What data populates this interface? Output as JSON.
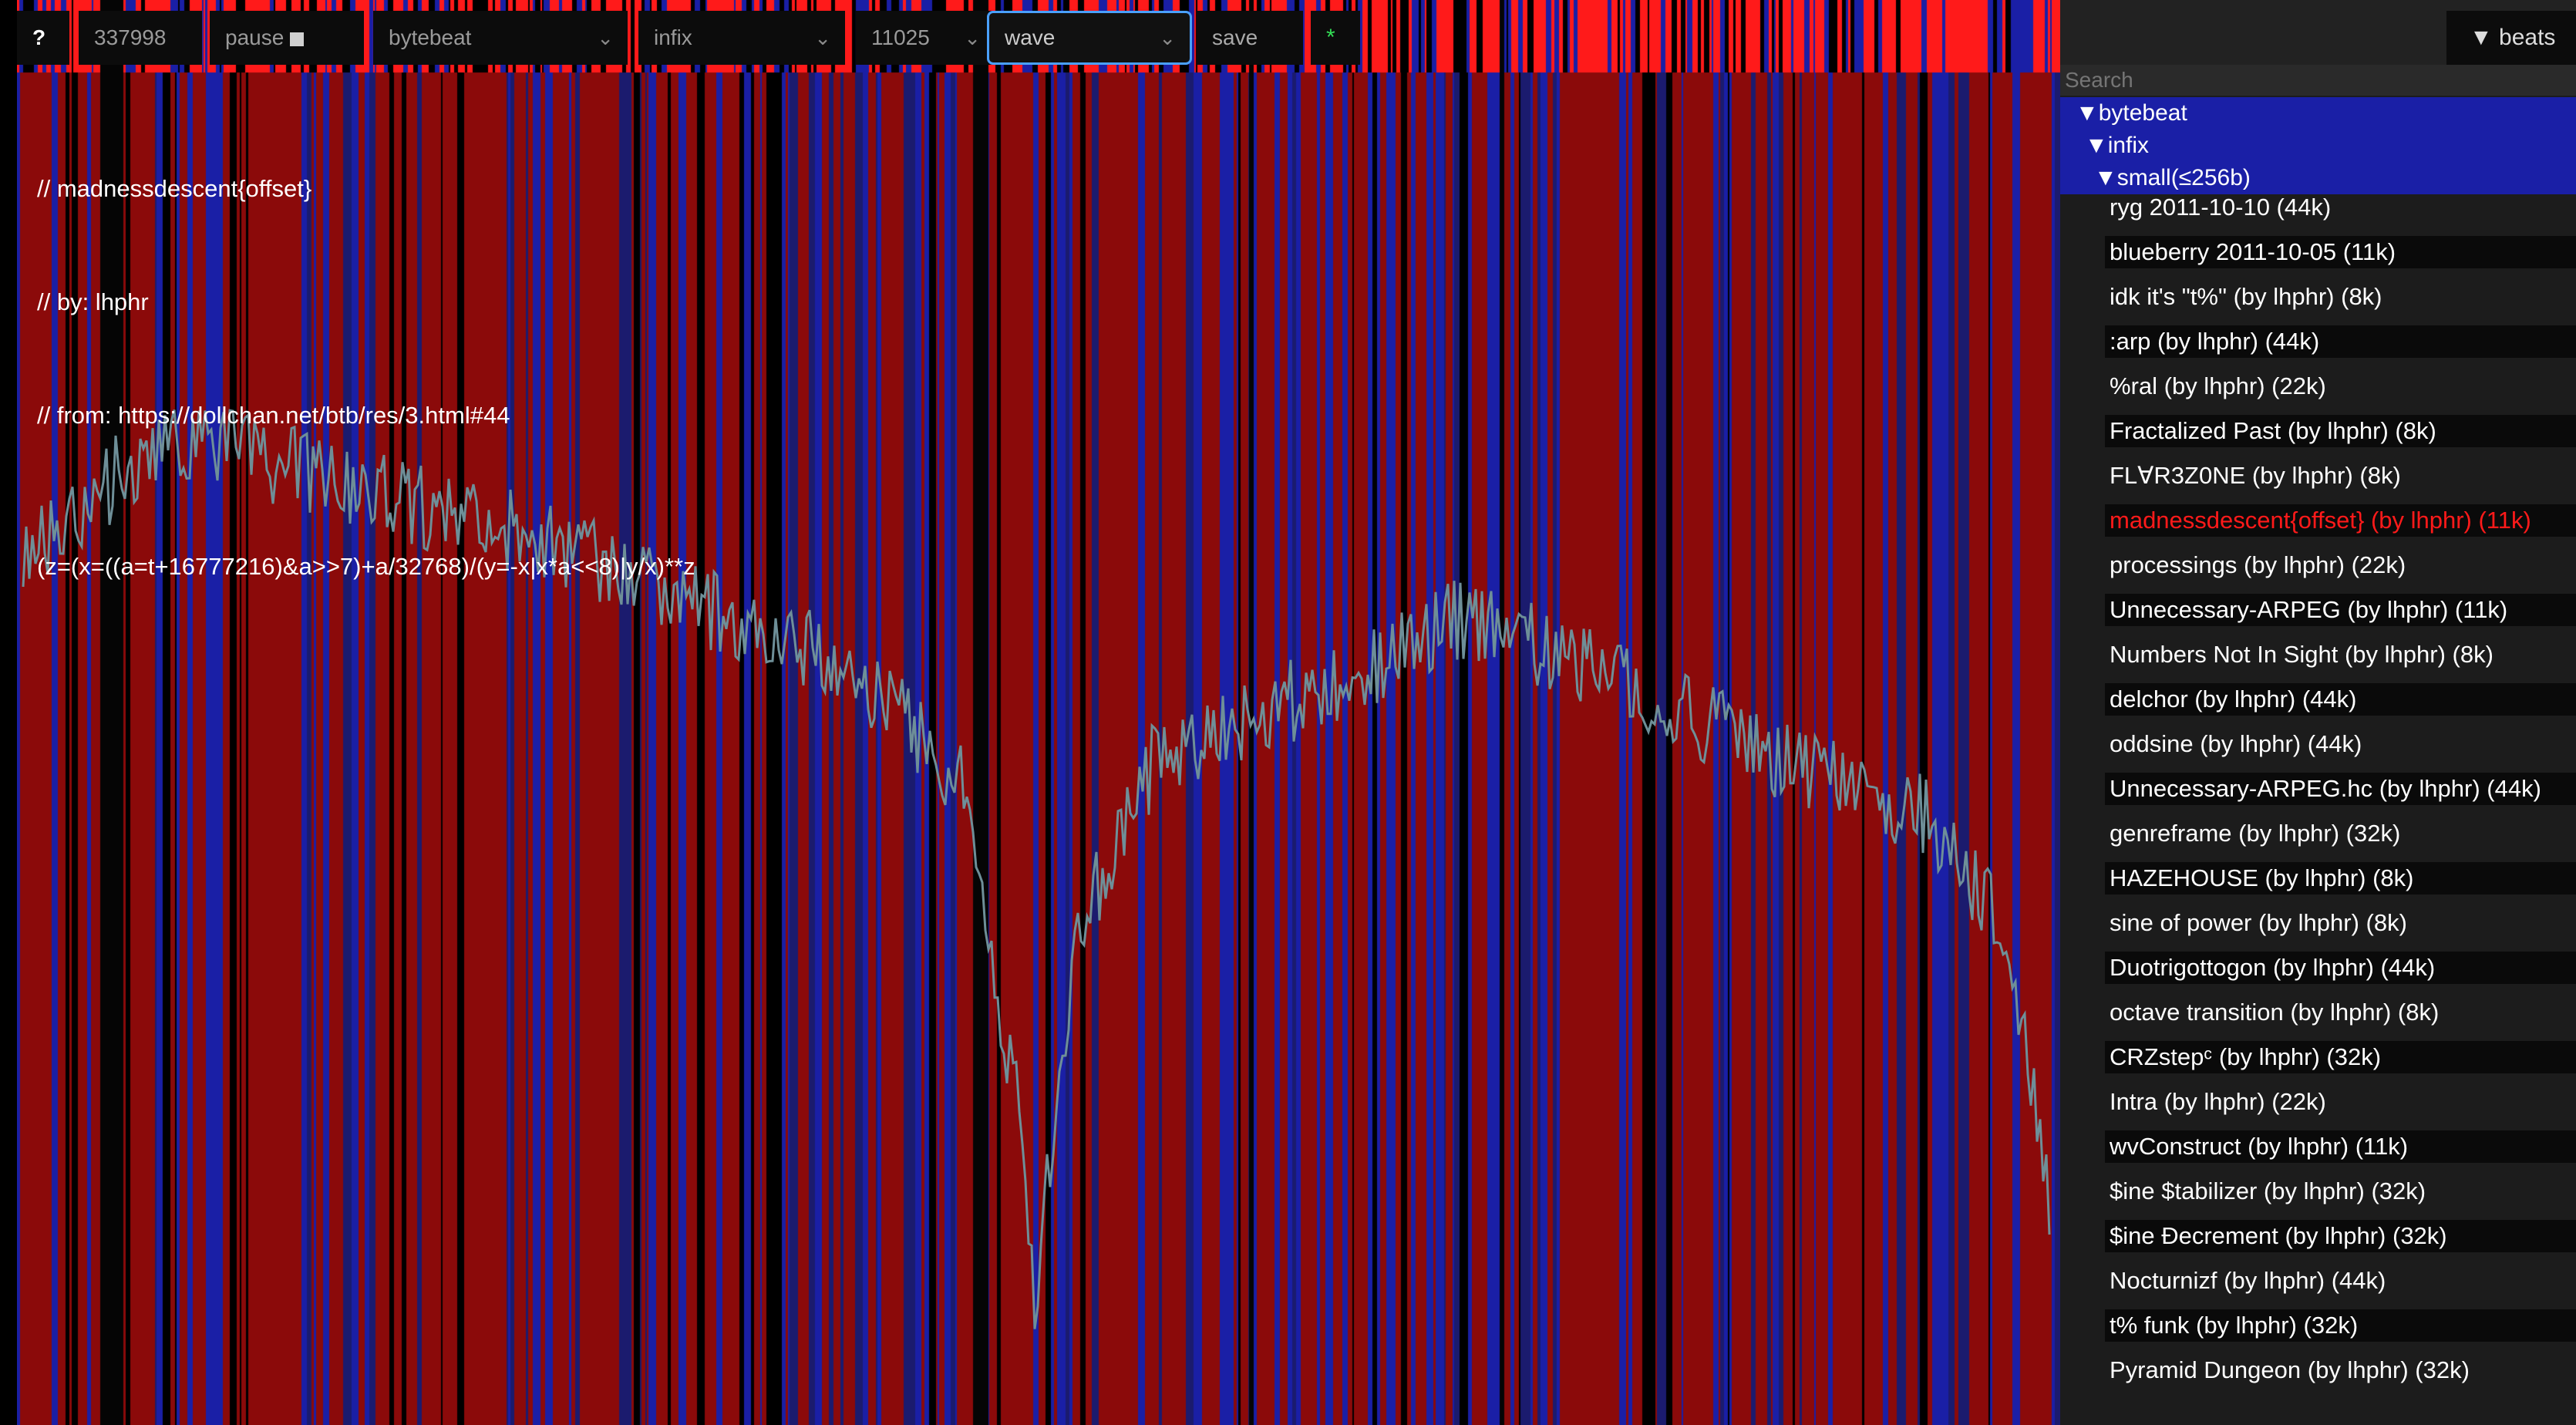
{
  "toolbar": {
    "help": "?",
    "counter": "337998",
    "pause": "pause",
    "mode": "bytebeat",
    "syntax": "infix",
    "rate": "11025",
    "view": "wave",
    "save": "save",
    "star": "*"
  },
  "code": {
    "line1": "// madnessdescent{offset}",
    "line2": "// by: lhphr",
    "line3": "// from: https://dollchan.net/btb/res/3.html#44",
    "expr": "(z=(x=((a=t+16777216)&a>>7)+a/32768)/(y=-x|x*a<<8)|y/x)**z"
  },
  "sidebar": {
    "beats_label": "▼ beats",
    "search_placeholder": "Search",
    "tree": [
      "▼bytebeat",
      "▼infix",
      "▼small(≤256b)"
    ],
    "items": [
      "ryg 2011-10-10 (44k)",
      "blueberry 2011-10-05 (11k)",
      "idk it's \"t%\" (by lhphr) (8k)",
      ":arp (by lhphr) (44k)",
      "%ral (by lhphr) (22k)",
      "Fractalized Past (by lhphr) (8k)",
      "FL∀R3Z0NE (by lhphr) (8k)",
      "madnessdescent{offset} (by lhphr) (11k)",
      "processings (by lhphr) (22k)",
      "Unnecessary-ARPEG (by lhphr) (11k)",
      "Numbers Not In Sight (by lhphr) (8k)",
      "delchor (by lhphr) (44k)",
      "oddsine (by lhphr) (44k)",
      "Unnecessary-ARPEG.hc (by lhphr) (44k)",
      "genreframe (by lhphr) (32k)",
      "HAZEHOUSE (by lhphr) (8k)",
      "sine of power (by lhphr) (8k)",
      "Duotrigottogon (by lhphr) (44k)",
      "octave transition (by lhphr) (8k)",
      "CRZstepᶜ (by lhphr) (32k)",
      "Intra (by lhphr) (22k)",
      "wvConstruct (by lhphr) (11k)",
      "$ine $tabilizer (by lhphr) (32k)",
      "$ine Đecrement (by lhphr) (32k)",
      "Nocturnizf (by lhphr) (44k)",
      "t% funk (by lhphr) (32k)",
      "Pyramid Dungeon (by lhphr) (32k)"
    ],
    "active_index": 7
  },
  "colors": {
    "dark_red": "#8b0a0a",
    "bright_red": "#ff1a1a",
    "blue": "#1a1fa6",
    "waveform": "#6e8f98",
    "selection_blue": "#4aa0ff"
  },
  "icons": {
    "pause": "stop-square-icon",
    "dropdown": "chevron-down-icon",
    "beats": "triangle-down-icon"
  }
}
